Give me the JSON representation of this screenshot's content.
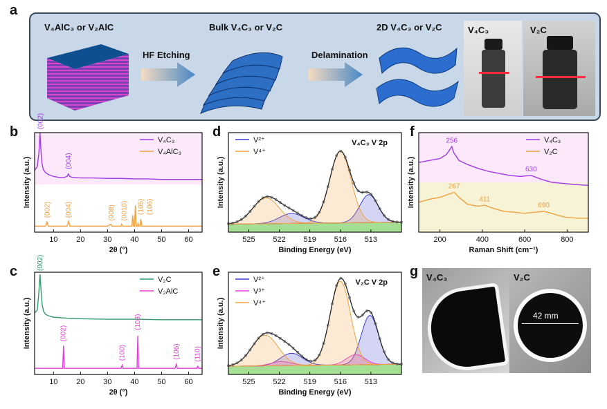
{
  "panel_labels": {
    "a": "a",
    "b": "b",
    "c": "c",
    "d": "d",
    "e": "e",
    "f": "f",
    "g": "g"
  },
  "panel_a": {
    "stage1": "V₄AlC₃ or V₂AlC",
    "arrow1": "HF Etching",
    "stage2": "Bulk V₄C₃ or V₂C",
    "arrow2": "Delamination",
    "stage3": "2D V₄C₃ or V₂C",
    "photo1": "V₄C₃",
    "photo2": "V₂C"
  },
  "panel_g": {
    "photo1": "V₄C₃",
    "photo2": "V₂C",
    "diameter": "42 mm"
  },
  "colors": {
    "purple": "#a23ae8",
    "orange": "#f0a040",
    "green": "#2f9a6c",
    "magenta": "#e33ed8",
    "blue": "#3a3ad0",
    "v4c3_tint": "#fbe8fb",
    "v2c_tint": "#f7f3d6",
    "fill_green": "#59c43a"
  },
  "chart_data": [
    {
      "id": "b",
      "type": "line",
      "xlabel": "2θ (°)",
      "ylabel": "Intensity (a.u.)",
      "xlim": [
        3,
        65
      ],
      "xticks": [
        10,
        20,
        30,
        40,
        50,
        60
      ],
      "series": [
        {
          "name": "V₄C₃",
          "color": "#a23ae8",
          "x": [
            3,
            4,
            4.6,
            5,
            5.3,
            5.7,
            6.2,
            7,
            8,
            10,
            12,
            14,
            15,
            15.5,
            16,
            17,
            20,
            25,
            30,
            35,
            40,
            45,
            50,
            55,
            60,
            65
          ],
          "y": [
            0.62,
            0.66,
            0.8,
            1.0,
            0.84,
            0.7,
            0.63,
            0.6,
            0.58,
            0.56,
            0.55,
            0.55,
            0.56,
            0.585,
            0.56,
            0.55,
            0.545,
            0.545,
            0.54,
            0.54,
            0.535,
            0.535,
            0.53,
            0.53,
            0.53,
            0.53
          ]
        },
        {
          "name": "V₄AlC₃",
          "color": "#f0a040",
          "x": [
            3,
            7,
            7.6,
            8,
            8.4,
            15,
            15.6,
            16,
            16.3,
            30,
            31.2,
            31.6,
            35,
            35.2,
            35.6,
            39,
            39.3,
            39.6,
            40,
            40.3,
            40.6,
            41,
            41.3,
            41.6,
            42,
            42.3,
            42.7,
            45,
            56,
            60,
            65
          ],
          "y": [
            0.06,
            0.06,
            0.1,
            0.06,
            0.06,
            0.06,
            0.11,
            0.06,
            0.06,
            0.06,
            0.08,
            0.06,
            0.06,
            0.08,
            0.06,
            0.06,
            0.17,
            0.06,
            0.06,
            0.27,
            0.06,
            0.06,
            0.09,
            0.06,
            0.06,
            0.13,
            0.06,
            0.06,
            0.06,
            0.06,
            0.06
          ]
        }
      ],
      "annotations": [
        {
          "text": "(002)",
          "x": 5.2,
          "y": 1.02,
          "color": "#a23ae8"
        },
        {
          "text": "(004)",
          "x": 15.5,
          "y": 0.62,
          "color": "#a23ae8"
        },
        {
          "text": "(002)",
          "x": 7.8,
          "y": 0.13,
          "color": "#f0a040"
        },
        {
          "text": "(004)",
          "x": 15.6,
          "y": 0.13,
          "color": "#f0a040"
        },
        {
          "text": "(008)",
          "x": 31.4,
          "y": 0.1,
          "color": "#f0a040"
        },
        {
          "text": "(0010)",
          "x": 36.2,
          "y": 0.1,
          "color": "#f0a040"
        },
        {
          "text": "(105)",
          "x": 42.3,
          "y": 0.16,
          "color": "#f0a040"
        },
        {
          "text": "(106)",
          "x": 45.6,
          "y": 0.16,
          "color": "#f0a040"
        }
      ],
      "legend": "top-right"
    },
    {
      "id": "c",
      "type": "line",
      "xlabel": "2θ (°)",
      "ylabel": "Intensity (a.u.)",
      "xlim": [
        3,
        65
      ],
      "xticks": [
        10,
        20,
        30,
        40,
        50,
        60
      ],
      "series": [
        {
          "name": "V₂C",
          "color": "#2f9a6c",
          "x": [
            3,
            4,
            4.5,
            5,
            5.4,
            5.8,
            6.3,
            7,
            8,
            10,
            15,
            20,
            30,
            40,
            50,
            60,
            65
          ],
          "y": [
            0.6,
            0.63,
            0.78,
            0.98,
            0.82,
            0.68,
            0.62,
            0.59,
            0.575,
            0.56,
            0.55,
            0.545,
            0.54,
            0.54,
            0.535,
            0.535,
            0.535
          ]
        },
        {
          "name": "V₂AlC",
          "color": "#e33ed8",
          "x": [
            3,
            13,
            13.4,
            13.7,
            14,
            35,
            35.4,
            35.7,
            40.5,
            40.9,
            41.2,
            41.5,
            55,
            55.5,
            55.8,
            63,
            63.4,
            63.7,
            65
          ],
          "y": [
            0.06,
            0.06,
            0.06,
            0.28,
            0.06,
            0.06,
            0.09,
            0.06,
            0.06,
            0.06,
            0.38,
            0.06,
            0.06,
            0.1,
            0.06,
            0.06,
            0.08,
            0.06,
            0.06
          ]
        }
      ],
      "annotations": [
        {
          "text": "(002)",
          "x": 5.0,
          "y": 1.0,
          "color": "#2f9a6c"
        },
        {
          "text": "(002)",
          "x": 13.6,
          "y": 0.31,
          "color": "#e33ed8"
        },
        {
          "text": "(100)",
          "x": 35.4,
          "y": 0.12,
          "color": "#e33ed8"
        },
        {
          "text": "(103)",
          "x": 41.2,
          "y": 0.42,
          "color": "#e33ed8"
        },
        {
          "text": "(106)",
          "x": 55.5,
          "y": 0.13,
          "color": "#e33ed8"
        },
        {
          "text": "(110)",
          "x": 63.3,
          "y": 0.11,
          "color": "#e33ed8"
        }
      ],
      "legend": "top-right"
    },
    {
      "id": "d",
      "type": "area",
      "title": "V₄C₃  V 2p",
      "xlabel": "Binding Energy (eV)",
      "ylabel": "Intensity (a.u.)",
      "xlim": [
        527,
        510
      ],
      "xticks": [
        525,
        522,
        519,
        516,
        513
      ],
      "series": [
        {
          "name": "V²⁺",
          "color": "#3a3ad0",
          "components": [
            {
              "center": 513.2,
              "height": 0.28,
              "width": 0.9
            },
            {
              "center": 520.8,
              "height": 0.1,
              "width": 1.2
            }
          ]
        },
        {
          "name": "V⁴⁺",
          "color": "#f0a040",
          "components": [
            {
              "center": 516.0,
              "height": 0.72,
              "width": 1.05
            },
            {
              "center": 523.3,
              "height": 0.26,
              "width": 1.3
            }
          ]
        }
      ],
      "legend": "top-left"
    },
    {
      "id": "e",
      "type": "area",
      "title": "V₂C  V 2p",
      "xlabel": "Binding Energy (eV)",
      "ylabel": "Intensity (a.u.)",
      "xlim": [
        527,
        510
      ],
      "xticks": [
        525,
        522,
        519,
        516,
        513
      ],
      "series": [
        {
          "name": "V²⁺",
          "color": "#3a3ad0",
          "components": [
            {
              "center": 513.1,
              "height": 0.48,
              "width": 0.85
            },
            {
              "center": 520.8,
              "height": 0.12,
              "width": 1.1
            }
          ]
        },
        {
          "name": "V³⁺",
          "color": "#e33ed8",
          "components": [
            {
              "center": 514.5,
              "height": 0.1,
              "width": 0.9
            },
            {
              "center": 521.8,
              "height": 0.04,
              "width": 1.0
            }
          ]
        },
        {
          "name": "V⁴⁺",
          "color": "#f0a040",
          "components": [
            {
              "center": 516.0,
              "height": 0.82,
              "width": 1.0
            },
            {
              "center": 523.4,
              "height": 0.3,
              "width": 1.3
            }
          ]
        }
      ],
      "legend": "top-left"
    },
    {
      "id": "f",
      "type": "line",
      "xlabel": "Raman Shift (cm⁻¹)",
      "ylabel": "Intensity (a.u.)",
      "xlim": [
        100,
        900
      ],
      "xticks": [
        200,
        400,
        600,
        800
      ],
      "series": [
        {
          "name": "V₄C₃",
          "color": "#a23ae8",
          "x": [
            100,
            150,
            200,
            230,
            250,
            256,
            265,
            290,
            330,
            380,
            430,
            480,
            530,
            580,
            630,
            680,
            730,
            780,
            830,
            900
          ],
          "y": [
            0.7,
            0.72,
            0.74,
            0.78,
            0.84,
            0.86,
            0.8,
            0.72,
            0.68,
            0.64,
            0.61,
            0.59,
            0.57,
            0.56,
            0.57,
            0.53,
            0.5,
            0.49,
            0.48,
            0.47
          ]
        },
        {
          "name": "V₂C",
          "color": "#f0a040",
          "x": [
            100,
            150,
            200,
            240,
            267,
            290,
            330,
            380,
            411,
            450,
            500,
            550,
            600,
            650,
            690,
            740,
            790,
            850,
            900
          ],
          "y": [
            0.3,
            0.33,
            0.35,
            0.38,
            0.4,
            0.35,
            0.28,
            0.26,
            0.27,
            0.24,
            0.21,
            0.2,
            0.19,
            0.2,
            0.21,
            0.18,
            0.15,
            0.14,
            0.14
          ]
        }
      ],
      "annotations": [
        {
          "text": "256",
          "x": 256,
          "y": 0.9,
          "color": "#a23ae8"
        },
        {
          "text": "630",
          "x": 630,
          "y": 0.61,
          "color": "#a23ae8"
        },
        {
          "text": "267",
          "x": 267,
          "y": 0.44,
          "color": "#f0a040"
        },
        {
          "text": "411",
          "x": 411,
          "y": 0.31,
          "color": "#f0a040"
        },
        {
          "text": "690",
          "x": 690,
          "y": 0.25,
          "color": "#f0a040"
        }
      ],
      "legend": "top-right"
    }
  ]
}
